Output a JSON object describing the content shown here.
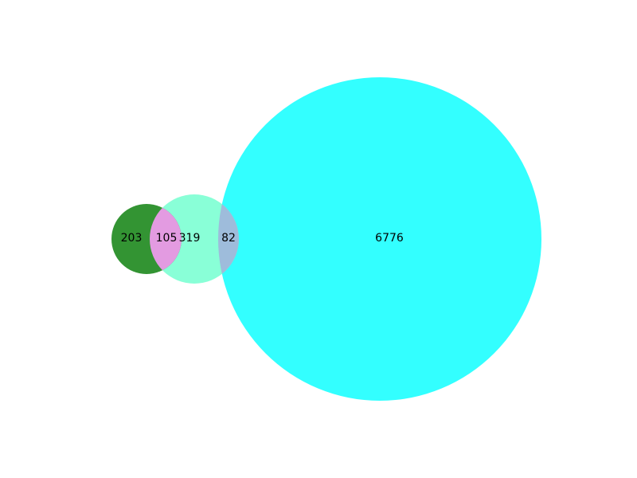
{
  "chart_data": {
    "type": "venn",
    "sets": [
      {
        "id": "set-a",
        "color": "#228B22",
        "opacity": 0.92
      },
      {
        "id": "set-b",
        "color": "#7FFFD4",
        "opacity": 0.92
      },
      {
        "id": "set-c",
        "color": "#00FFFF",
        "opacity": 0.8
      }
    ],
    "overlap_colors": {
      "a_b": "#E39BE1",
      "b_c": "#9EBCDB"
    },
    "regions": {
      "a_only": "203",
      "a_and_b": "105",
      "b_only": "319",
      "b_and_c": "82",
      "c_only": "6776"
    }
  }
}
